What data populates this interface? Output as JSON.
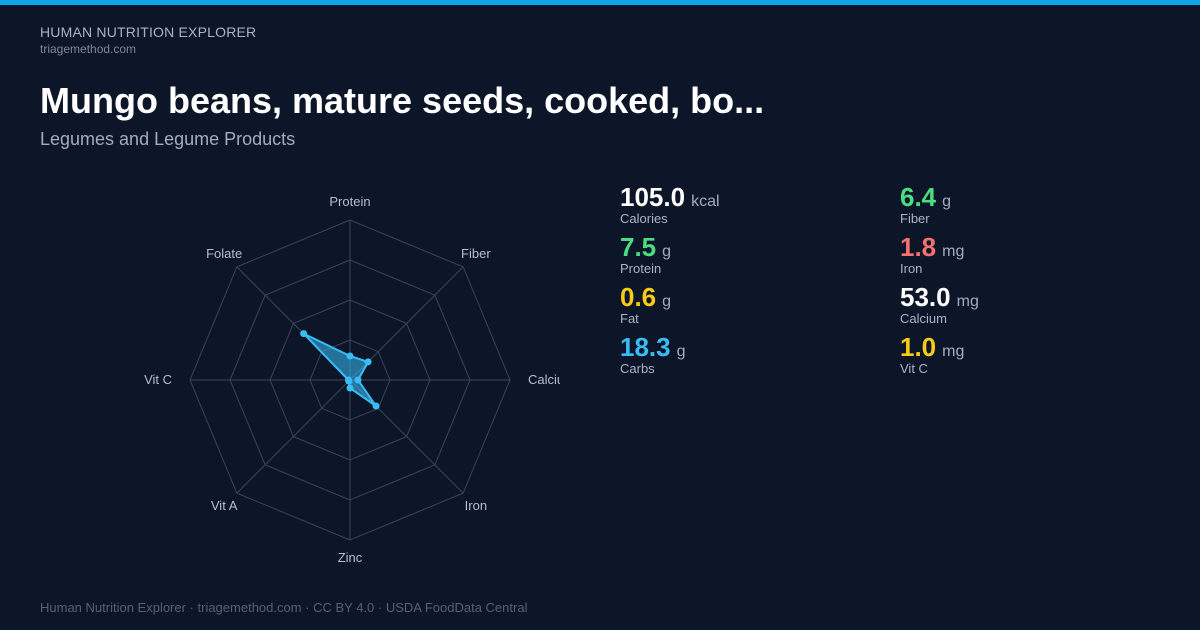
{
  "header": {
    "brand": "HUMAN NUTRITION EXPLORER",
    "site": "triagemethod.com"
  },
  "food": {
    "title": "Mungo beans, mature seeds, cooked, bo...",
    "category": "Legumes and Legume Products"
  },
  "stats": [
    {
      "value": "105.0",
      "unit": "kcal",
      "label": "Calories",
      "color": "#ffffff"
    },
    {
      "value": "7.5",
      "unit": "g",
      "label": "Protein",
      "color": "#4ade80"
    },
    {
      "value": "0.6",
      "unit": "g",
      "label": "Fat",
      "color": "#facc15"
    },
    {
      "value": "18.3",
      "unit": "g",
      "label": "Carbs",
      "color": "#38bdf8"
    },
    {
      "value": "6.4",
      "unit": "g",
      "label": "Fiber",
      "color": "#4ade80"
    },
    {
      "value": "1.8",
      "unit": "mg",
      "label": "Iron",
      "color": "#f87171"
    },
    {
      "value": "53.0",
      "unit": "mg",
      "label": "Calcium",
      "color": "#ffffff"
    },
    {
      "value": "1.0",
      "unit": "mg",
      "label": "Vit C",
      "color": "#facc15"
    }
  ],
  "chart_data": {
    "type": "radar",
    "categories": [
      "Protein",
      "Fiber",
      "Calcium",
      "Iron",
      "Zinc",
      "Vit A",
      "Vit C",
      "Folate"
    ],
    "values": [
      0.15,
      0.16,
      0.05,
      0.23,
      0.05,
      0.01,
      0.01,
      0.41
    ],
    "range": [
      0,
      1
    ],
    "rings": 4,
    "series_color": "#38bdf8",
    "grid_color": "#3a4558",
    "label_color": "#b4bfcd"
  },
  "footer": {
    "text": "Human Nutrition Explorer · triagemethod.com · CC BY 4.0 · USDA FoodData Central"
  }
}
